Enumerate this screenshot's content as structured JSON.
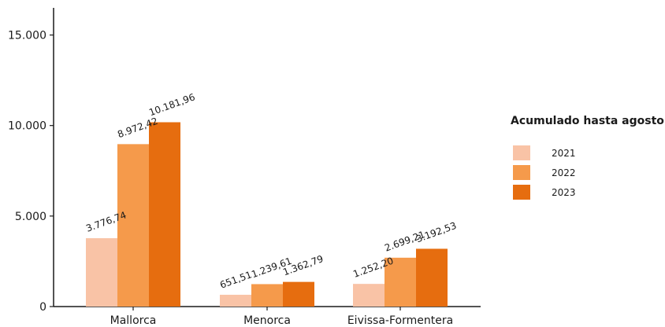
{
  "chart_data": {
    "type": "bar",
    "categories": [
      "Mallorca",
      "Menorca",
      "Eivissa-Formentera"
    ],
    "series": [
      {
        "name": "2021",
        "values": [
          3776.74,
          651.51,
          1252.2
        ],
        "labels": [
          "3.776,74",
          "651,51",
          "1.252,20"
        ],
        "color": "#f9c3a6"
      },
      {
        "name": "2022",
        "values": [
          8972.42,
          1239.61,
          2699.21
        ],
        "labels": [
          "8.972,42",
          "1.239,61",
          "2.699,21"
        ],
        "color": "#f59a4b"
      },
      {
        "name": "2023",
        "values": [
          10181.96,
          1362.79,
          3192.53
        ],
        "labels": [
          "10.181,96",
          "1.362,79",
          "3.192,53"
        ],
        "color": "#e66d0f"
      }
    ],
    "yticks": [
      0,
      5000,
      10000,
      15000
    ],
    "ytick_labels": [
      "0",
      "5.000",
      "10.000",
      "15.000"
    ],
    "ylim": [
      0,
      16500
    ],
    "xlabel": "",
    "ylabel": "",
    "title": "",
    "legend_title": "Acumulado hasta agosto",
    "legend_position": "right",
    "grid": false
  }
}
